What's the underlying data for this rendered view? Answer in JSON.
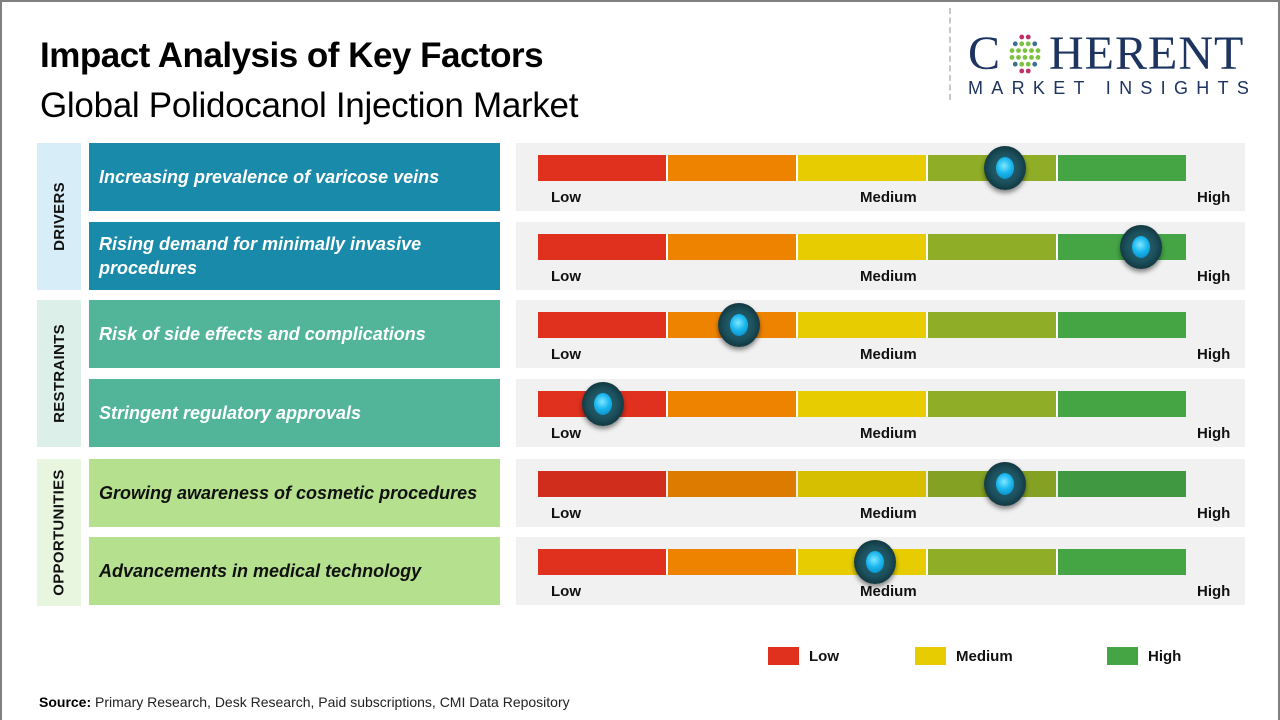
{
  "header": {
    "title": "Impact Analysis of Key Factors",
    "subtitle": "Global Polidocanol Injection Market"
  },
  "logo": {
    "name_prefix": "C",
    "name_suffix": "HERENT",
    "tagline": "MARKET INSIGHTS"
  },
  "categories": [
    {
      "label": "DRIVERS"
    },
    {
      "label": "RESTRAINTS"
    },
    {
      "label": "OPPORTUNITIES"
    }
  ],
  "scale_labels": {
    "low": "Low",
    "medium": "Medium",
    "high": "High"
  },
  "colors": {
    "drivers": "#1a8aaa",
    "restraints": "#52b498",
    "opportunities": "#b5e08e",
    "scale": [
      "#e0301e",
      "#ee8300",
      "#e6cc00",
      "#8fad26",
      "#45a545"
    ]
  },
  "legend": [
    {
      "label": "Low",
      "color": "#e0301e"
    },
    {
      "label": "Medium",
      "color": "#e6cc00"
    },
    {
      "label": "High",
      "color": "#45a545"
    }
  ],
  "source": {
    "prefix": "Source:",
    "text": " Primary Research, Desk Research, Paid subscriptions, CMI Data Repository"
  },
  "chart_data": {
    "type": "gauge-bars",
    "title": "Impact Analysis of Key Factors",
    "subtitle": "Global Polidocanol Injection Market",
    "scale": {
      "min": 0,
      "max": 1,
      "segments": 5,
      "labels": [
        "Low",
        "Medium",
        "High"
      ]
    },
    "legend_position": "bottom-right",
    "series": [
      {
        "category": "DRIVERS",
        "factor": "Increasing prevalence of varicose veins",
        "impact": 0.72
      },
      {
        "category": "DRIVERS",
        "factor": "Rising demand for minimally invasive procedures",
        "impact": 0.93
      },
      {
        "category": "RESTRAINTS",
        "factor": "Risk of side effects and complications",
        "impact": 0.31
      },
      {
        "category": "RESTRAINTS",
        "factor": "Stringent regulatory approvals",
        "impact": 0.1
      },
      {
        "category": "OPPORTUNITIES",
        "factor": "Growing awareness of cosmetic procedures",
        "impact": 0.72
      },
      {
        "category": "OPPORTUNITIES",
        "factor": "Advancements in medical technology",
        "impact": 0.52
      }
    ]
  }
}
